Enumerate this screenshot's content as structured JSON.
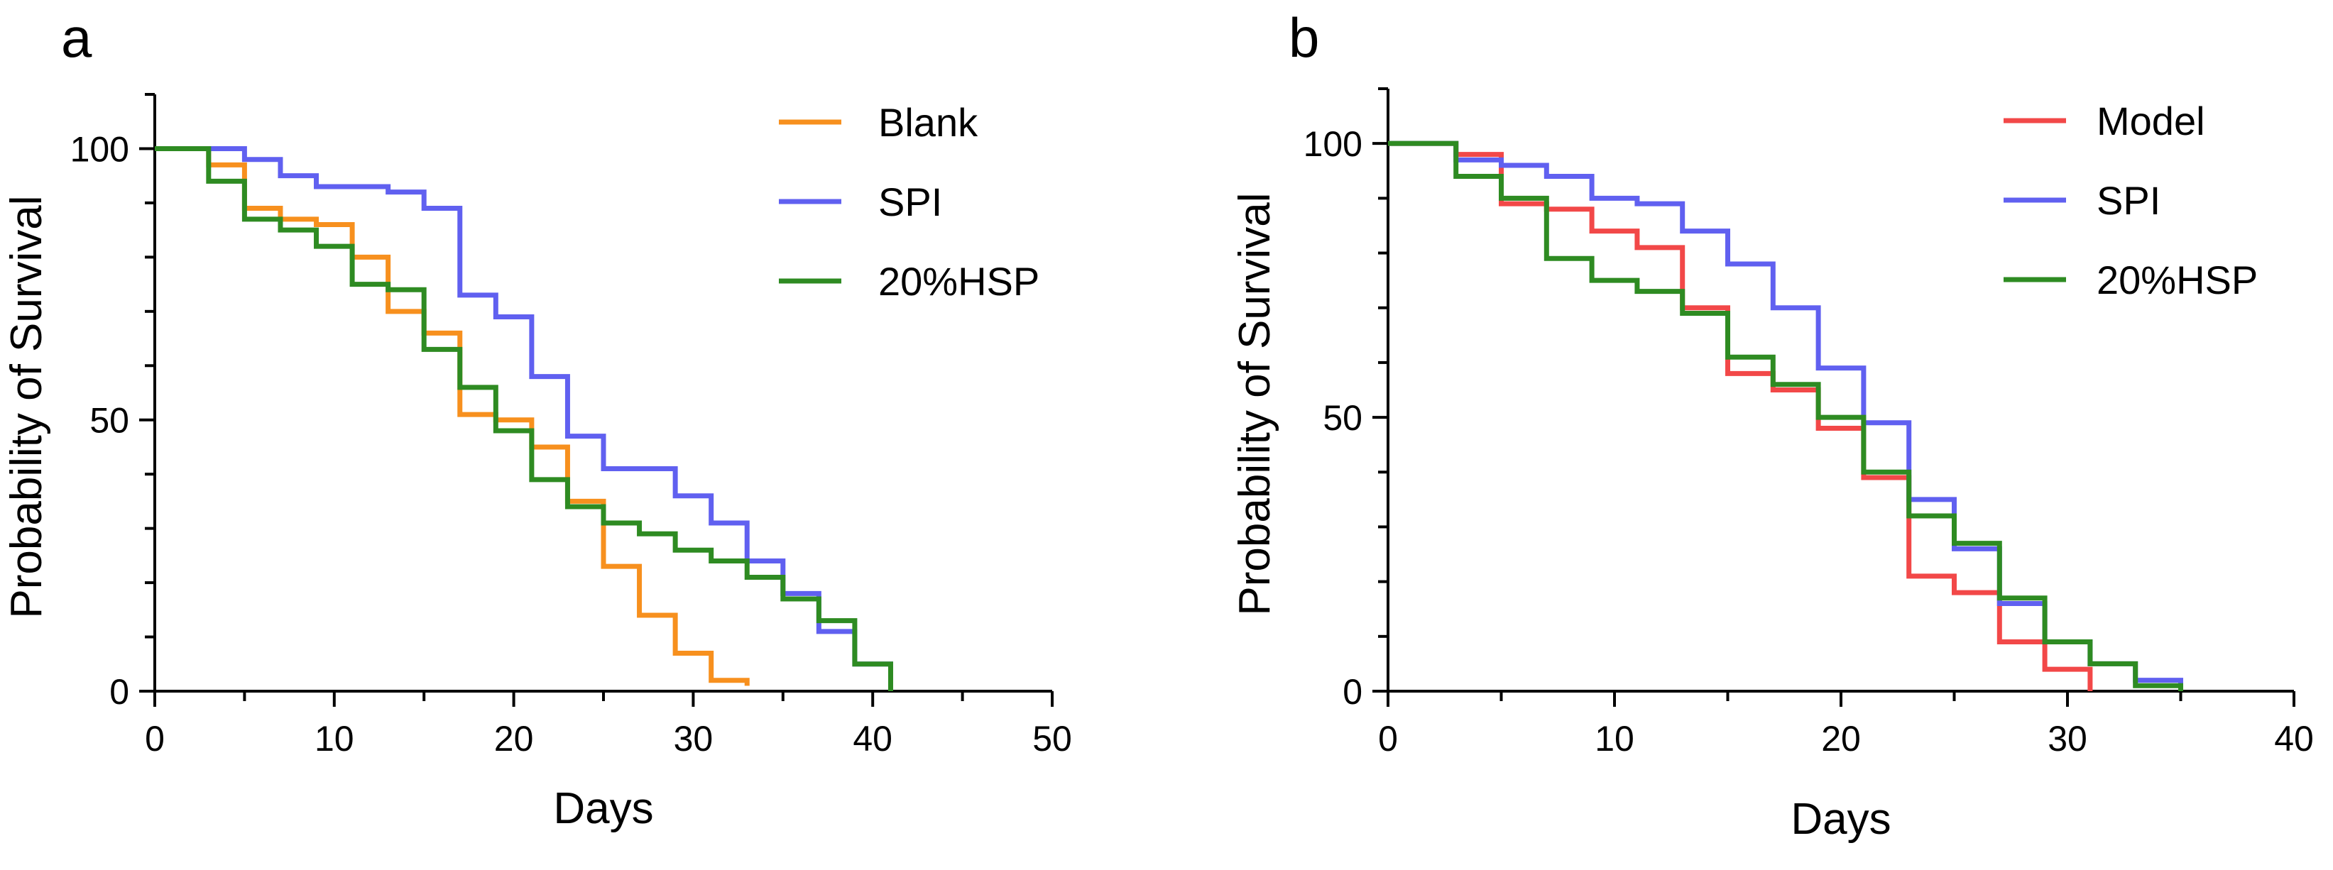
{
  "chart_data": [
    {
      "type": "line",
      "panel": "a",
      "title": "",
      "xlabel": "Days",
      "ylabel": "Probability of Survival",
      "xlim": [
        0,
        50
      ],
      "ylim": [
        0,
        110
      ],
      "xticks": [
        0,
        10,
        20,
        30,
        40,
        50
      ],
      "xtick_labels": [
        "0",
        "10",
        "20",
        "30",
        "40",
        "50"
      ],
      "yticks": [
        0,
        50,
        100
      ],
      "ytick_labels": [
        "0",
        "50",
        "100"
      ],
      "legend_position": "top-right",
      "series": [
        {
          "name": "Blank",
          "color": "#F7901E",
          "x": [
            0,
            3,
            5,
            7,
            9,
            11,
            13,
            15,
            17,
            19,
            21,
            23,
            25,
            27,
            29,
            31,
            33
          ],
          "y": [
            100,
            97,
            89,
            87,
            86,
            80,
            70,
            66,
            51,
            50,
            45,
            35,
            23,
            14,
            7,
            2,
            1
          ]
        },
        {
          "name": "SPI",
          "color": "#6060F0",
          "x": [
            0,
            5,
            7,
            9,
            13,
            15,
            17,
            19,
            21,
            23,
            25,
            29,
            31,
            33,
            35,
            37,
            39,
            41
          ],
          "y": [
            100,
            98,
            95,
            93,
            92,
            89,
            73,
            69,
            58,
            47,
            41,
            36,
            31,
            24,
            18,
            11,
            5,
            0
          ]
        },
        {
          "name": "20%HSP",
          "color": "#2E8B22",
          "x": [
            0,
            3,
            5,
            7,
            9,
            11,
            13,
            15,
            17,
            19,
            21,
            23,
            25,
            27,
            29,
            31,
            33,
            35,
            37,
            39,
            41
          ],
          "y": [
            100,
            94,
            87,
            85,
            82,
            75,
            74,
            63,
            56,
            48,
            39,
            34,
            31,
            29,
            26,
            24,
            21,
            17,
            13,
            5,
            0
          ]
        }
      ]
    },
    {
      "type": "line",
      "panel": "b",
      "title": "",
      "xlabel": "Days",
      "ylabel": "Probability of Survival",
      "xlim": [
        0,
        40
      ],
      "ylim": [
        0,
        110
      ],
      "xticks": [
        0,
        10,
        20,
        30,
        40
      ],
      "xtick_labels": [
        "0",
        "10",
        "20",
        "30",
        "40"
      ],
      "yticks": [
        0,
        50,
        100
      ],
      "ytick_labels": [
        "0",
        "50",
        "100"
      ],
      "legend_position": "top-right",
      "series": [
        {
          "name": "Model",
          "color": "#F24848",
          "x": [
            0,
            3,
            5,
            7,
            9,
            11,
            13,
            15,
            17,
            19,
            21,
            23,
            25,
            27,
            29,
            31
          ],
          "y": [
            100,
            98,
            89,
            88,
            84,
            81,
            70,
            58,
            55,
            48,
            39,
            21,
            18,
            9,
            4,
            0
          ]
        },
        {
          "name": "SPI",
          "color": "#6060F0",
          "x": [
            0,
            3,
            5,
            7,
            9,
            11,
            13,
            15,
            17,
            19,
            21,
            23,
            25,
            27,
            29,
            31,
            33,
            35
          ],
          "y": [
            100,
            97,
            96,
            94,
            90,
            89,
            84,
            78,
            70,
            59,
            49,
            35,
            26,
            16,
            9,
            5,
            2,
            0
          ]
        },
        {
          "name": "20%HSP",
          "color": "#2E8B22",
          "x": [
            0,
            3,
            5,
            7,
            9,
            11,
            13,
            15,
            17,
            19,
            21,
            23,
            25,
            27,
            29,
            31,
            33,
            35
          ],
          "y": [
            100,
            94,
            90,
            79,
            75,
            73,
            69,
            61,
            56,
            50,
            40,
            32,
            27,
            17,
            9,
            5,
            1,
            0
          ]
        }
      ]
    }
  ]
}
